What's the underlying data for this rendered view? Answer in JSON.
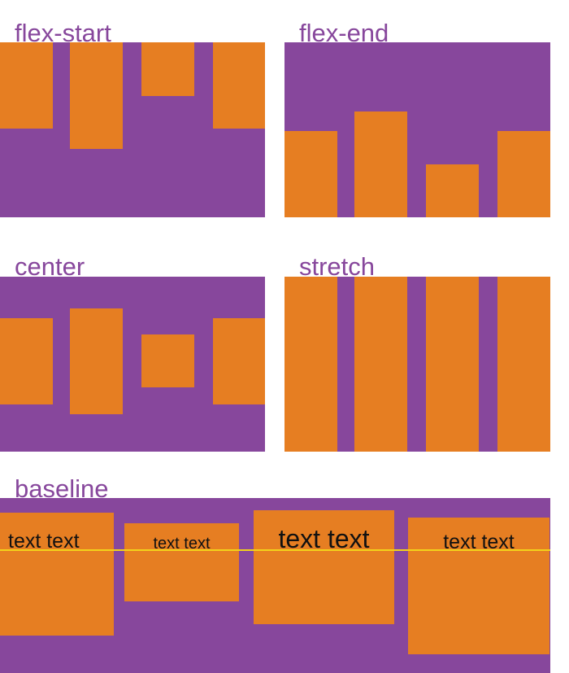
{
  "colors": {
    "container": "#87479c",
    "item": "#e67e22",
    "label": "#87479c",
    "baseline": "#f2d21b",
    "text": "#111111"
  },
  "diagrams": {
    "flex_start": {
      "label": "flex-start"
    },
    "flex_end": {
      "label": "flex-end"
    },
    "center": {
      "label": "center"
    },
    "stretch": {
      "label": "stretch"
    },
    "baseline": {
      "label": "baseline",
      "items": [
        {
          "text": "text text"
        },
        {
          "text": "text text"
        },
        {
          "text": "text text"
        },
        {
          "text": "text text"
        }
      ]
    }
  }
}
